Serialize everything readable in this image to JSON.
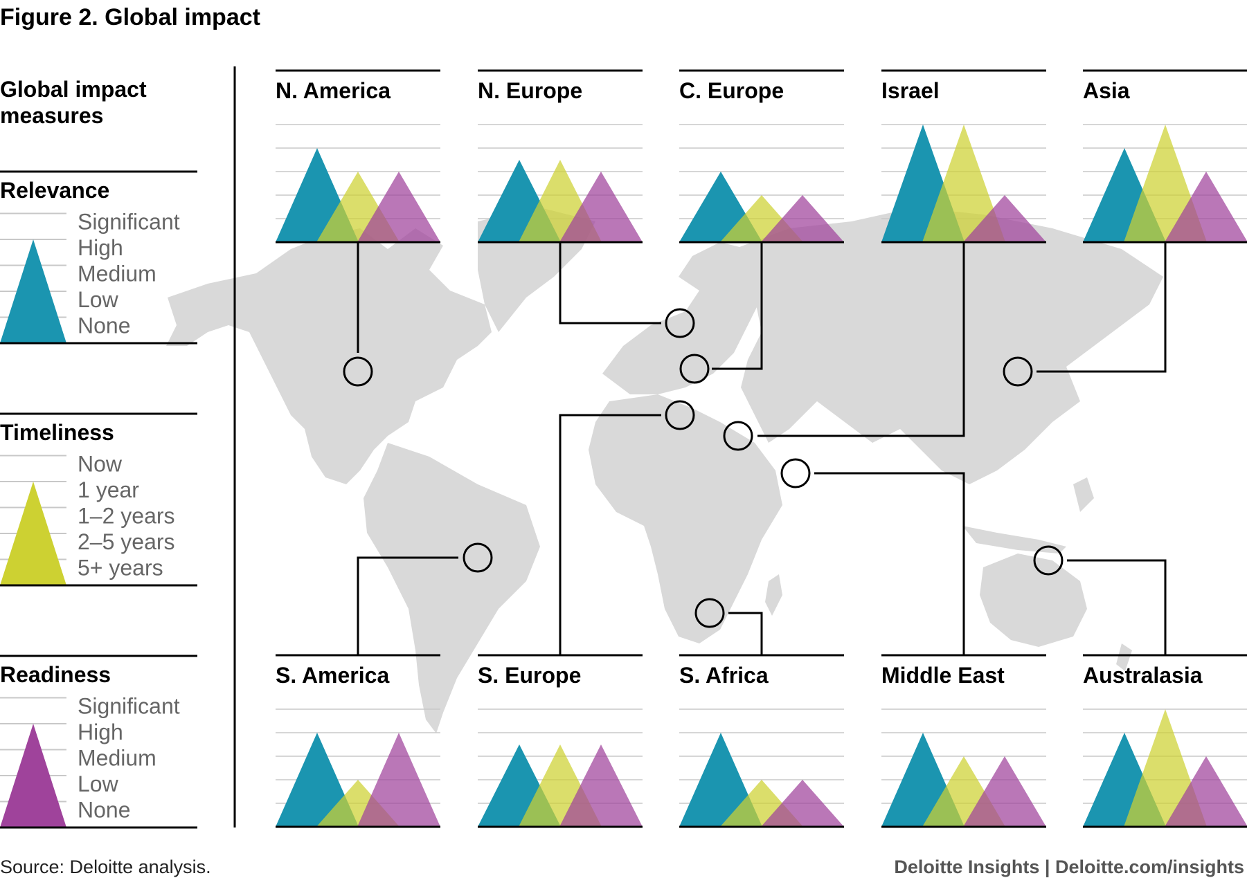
{
  "title": "Figure 2. Global impact",
  "legend": {
    "heading_line1": "Global impact",
    "heading_line2": "measures",
    "groups": [
      {
        "key": "relevance",
        "title": "Relevance",
        "color": "#1b95b0",
        "levels": [
          "Significant",
          "High",
          "Medium",
          "Low",
          "None"
        ]
      },
      {
        "key": "timeliness",
        "title": "Timeliness",
        "color": "#cdd132",
        "levels": [
          "Now",
          "1 year",
          "1–2 years",
          "2–5 years",
          "5+ years"
        ]
      },
      {
        "key": "readiness",
        "title": "Readiness",
        "color": "#9f439b",
        "levels": [
          "Significant",
          "High",
          "Medium",
          "Low",
          "None"
        ]
      }
    ]
  },
  "colors": {
    "relevance": "#1b95b0",
    "timeliness": "#cdd132",
    "readiness": "#9f439b",
    "map": "#d9d9d9",
    "gridline": "#c8c8c8"
  },
  "chart_data": {
    "type": "area",
    "scale_levels": 5,
    "series_names": [
      "Relevance",
      "Timeliness",
      "Readiness"
    ],
    "regions": [
      {
        "name": "N. America",
        "relevance": 4,
        "timeliness": 3,
        "readiness": 3
      },
      {
        "name": "N. Europe",
        "relevance": 3.5,
        "timeliness": 3.5,
        "readiness": 3
      },
      {
        "name": "C. Europe",
        "relevance": 3,
        "timeliness": 2,
        "readiness": 2
      },
      {
        "name": "Israel",
        "relevance": 5,
        "timeliness": 5,
        "readiness": 2
      },
      {
        "name": "Asia",
        "relevance": 4,
        "timeliness": 5,
        "readiness": 3
      },
      {
        "name": "S. America",
        "relevance": 4,
        "timeliness": 2,
        "readiness": 4
      },
      {
        "name": "S. Europe",
        "relevance": 3.5,
        "timeliness": 3.5,
        "readiness": 3.5
      },
      {
        "name": "S. Africa",
        "relevance": 4,
        "timeliness": 2,
        "readiness": 2
      },
      {
        "name": "Middle East",
        "relevance": 4,
        "timeliness": 3,
        "readiness": 3
      },
      {
        "name": "Australasia",
        "relevance": 4,
        "timeliness": 5,
        "readiness": 3
      }
    ]
  },
  "footer": {
    "source": "Source: Deloitte analysis.",
    "brand": "Deloitte Insights | Deloitte.com/insights"
  }
}
